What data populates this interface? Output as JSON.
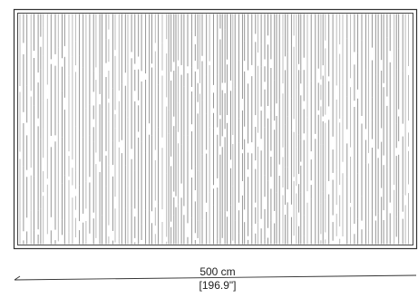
{
  "drawing": {
    "subject": "rug-top-view",
    "colors": {
      "outline": "#333333",
      "stripe": "#8a8a8a",
      "stripe_light": "#b5b5b5",
      "background": "#ffffff",
      "dimension_line": "#333333"
    }
  },
  "dimension": {
    "metric": "500 cm",
    "imperial": "[196.9\"]"
  }
}
